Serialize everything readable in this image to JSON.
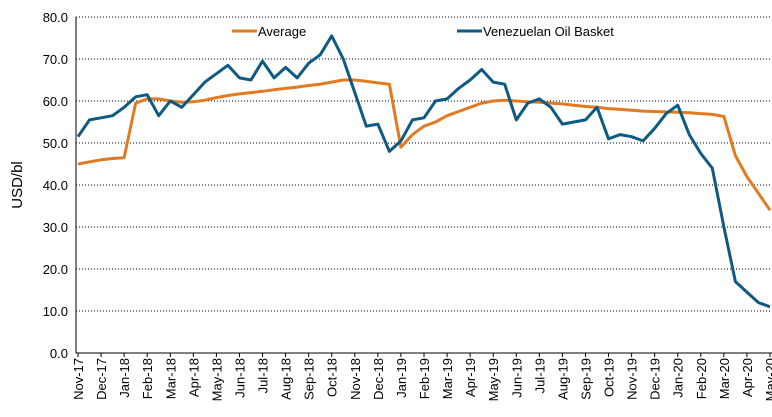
{
  "chart_data": {
    "type": "line",
    "ylabel": "USD/bl",
    "categories": [
      "Nov-17",
      null,
      "Dec-17",
      null,
      "Jan-18",
      null,
      "Feb-18",
      null,
      "Mar-18",
      null,
      "Apr-18",
      null,
      "May-18",
      null,
      "Jun-18",
      null,
      "Jul-18",
      null,
      "Aug-18",
      null,
      "Sep-18",
      null,
      "Oct-18",
      null,
      "Nov-18",
      null,
      "Dec-18",
      null,
      "Jan-19",
      null,
      "Feb-19",
      null,
      "Mar-19",
      null,
      "Apr-19",
      null,
      "May-19",
      null,
      "Jun-19",
      null,
      "Jul-19",
      null,
      "Aug-19",
      null,
      "Sep-19",
      null,
      "Oct-19",
      null,
      "Nov-19",
      null,
      "Dec-19",
      null,
      "Jan-20",
      null,
      "Feb-20",
      null,
      "Mar-20",
      null,
      "Apr-20",
      null,
      "May-20"
    ],
    "series": [
      {
        "name": "Average",
        "color": "#e07b22",
        "values": [
          45.0,
          45.5,
          46.0,
          46.3,
          46.5,
          59.5,
          60.5,
          60.5,
          60.0,
          59.7,
          59.8,
          60.2,
          60.8,
          61.3,
          61.7,
          62.0,
          62.3,
          62.7,
          63.0,
          63.3,
          63.7,
          64.0,
          64.5,
          65.0,
          65.0,
          64.7,
          64.3,
          64.0,
          49.0,
          52.0,
          54.0,
          55.0,
          56.5,
          57.5,
          58.5,
          59.5,
          60.0,
          60.2,
          60.0,
          59.8,
          59.7,
          59.5,
          59.3,
          59.0,
          58.7,
          58.5,
          58.2,
          58.0,
          57.8,
          57.6,
          57.5,
          57.4,
          57.3,
          57.2,
          57.0,
          56.8,
          56.3,
          47.0,
          42.0,
          38.0,
          34.0
        ]
      },
      {
        "name": "Venezuelan Oil Basket",
        "color": "#0e5a82",
        "values": [
          51.5,
          55.5,
          56.0,
          56.5,
          58.5,
          61.0,
          61.5,
          56.5,
          60.0,
          58.5,
          61.5,
          64.5,
          66.5,
          68.5,
          65.5,
          65.0,
          69.5,
          65.5,
          68.0,
          65.5,
          69.0,
          71.0,
          75.5,
          70.0,
          62.0,
          54.0,
          54.5,
          48.0,
          50.5,
          55.5,
          56.0,
          60.0,
          60.5,
          63.0,
          65.0,
          67.5,
          64.5,
          64.0,
          55.5,
          59.5,
          60.5,
          58.5,
          54.5,
          55.0,
          55.5,
          58.5,
          51.0,
          52.0,
          51.5,
          50.5,
          53.5,
          57.0,
          59.0,
          52.0,
          47.5,
          44.0,
          30.0,
          17.0,
          14.5,
          12.0,
          11.0
        ]
      }
    ],
    "ylim": [
      0,
      80
    ],
    "yticks": [
      {
        "value": 0,
        "label": "0.0"
      },
      {
        "value": 10,
        "label": "10.0"
      },
      {
        "value": 20,
        "label": "20.0"
      },
      {
        "value": 30,
        "label": "30.0"
      },
      {
        "value": 40,
        "label": "40.0"
      },
      {
        "value": 50,
        "label": "50.0"
      },
      {
        "value": 60,
        "label": "60.0"
      },
      {
        "value": 70,
        "label": "70.0"
      },
      {
        "value": 80,
        "label": "80.0"
      }
    ],
    "grid": true
  }
}
